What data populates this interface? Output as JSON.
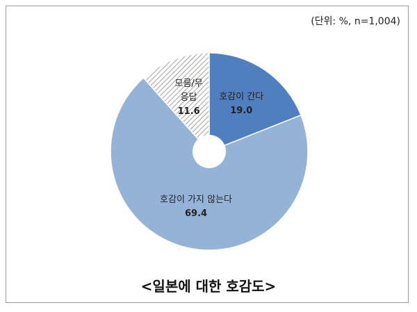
{
  "chart_data": {
    "type": "pie",
    "title": "<일본에 대한 호감도>",
    "subtitle": "(단위: %, n=1,004)",
    "categories": [
      "호감이 간다",
      "호감이 가지 않는다",
      "모름/무응답"
    ],
    "values": [
      19.0,
      69.4,
      11.6
    ],
    "value_labels": [
      "19.0",
      "69.4",
      "11.6"
    ],
    "colors": [
      "#4f7fbf",
      "#95b3d7",
      "hatch"
    ]
  }
}
